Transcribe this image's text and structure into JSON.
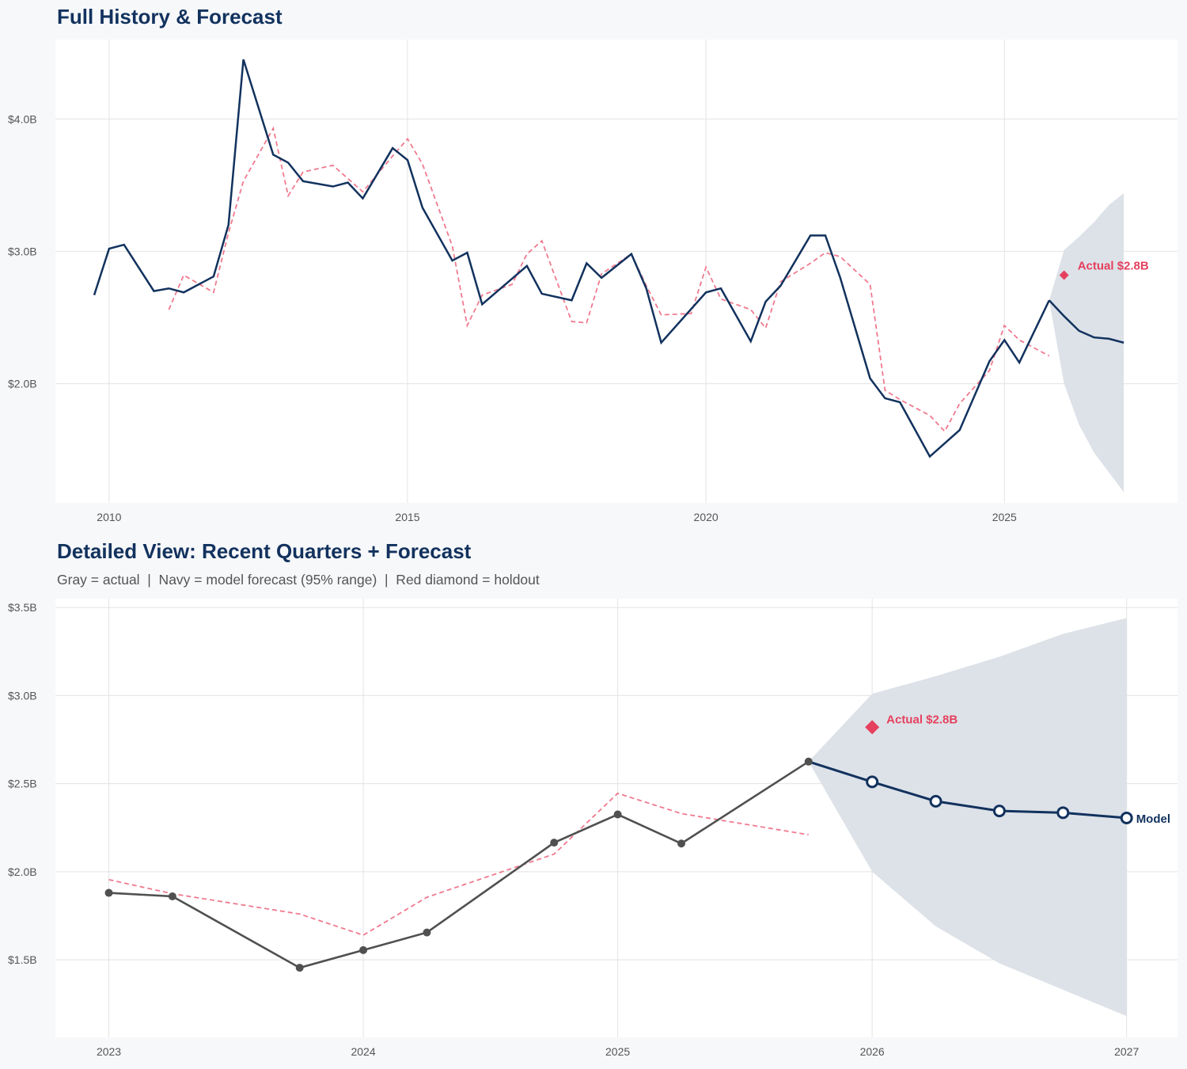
{
  "colors": {
    "navy": "#12325e",
    "gray": "#505050",
    "red_dash": "#f07a8e",
    "holdout": "#e5405e",
    "band": "#dbe0e7",
    "grid": "#e3e3e3"
  },
  "chart_data": [
    {
      "type": "line",
      "title": "Full History & Forecast",
      "xlim": [
        2009.1,
        2027.9
      ],
      "ylim": [
        1.1,
        4.6
      ],
      "x_ticks": [
        2010,
        2015,
        2020,
        2025
      ],
      "x_tick_labels": [
        "2010",
        "2015",
        "2020",
        "2025"
      ],
      "y_ticks": [
        2,
        3,
        4
      ],
      "y_tick_labels": [
        "$2.0B",
        "$3.0B",
        "$4.0B"
      ],
      "grid": true,
      "actual": {
        "x": [
          2009.75,
          2010,
          2010.25,
          2010.75,
          2011,
          2011.25,
          2011.75,
          2012,
          2012.25,
          2012.75,
          2013,
          2013.25,
          2013.75,
          2014,
          2014.25,
          2014.75,
          2015,
          2015.25,
          2015.75,
          2016,
          2016.25,
          2017,
          2017.25,
          2017.75,
          2018,
          2018.25,
          2018.75,
          2019,
          2019.25,
          2020,
          2020.25,
          2020.75,
          2021,
          2021.25,
          2021.75,
          2022,
          2022.25,
          2022.75,
          2023,
          2023.25,
          2023.75,
          2024,
          2024.25,
          2024.75,
          2025,
          2025.25,
          2025.75
        ],
        "y": [
          2.67,
          3.02,
          3.05,
          2.7,
          2.72,
          2.69,
          2.81,
          3.2,
          4.45,
          3.73,
          3.67,
          3.53,
          3.49,
          3.52,
          3.4,
          3.78,
          3.69,
          3.33,
          2.93,
          2.99,
          2.6,
          2.89,
          2.68,
          2.63,
          2.91,
          2.8,
          2.98,
          2.72,
          2.31,
          2.69,
          2.72,
          2.32,
          2.62,
          2.74,
          3.12,
          3.12,
          2.8,
          2.04,
          1.89,
          1.86,
          1.45,
          1.55,
          1.65,
          2.17,
          2.33,
          2.16,
          2.63
        ]
      },
      "fitted": {
        "x": [
          2011,
          2011.25,
          2011.75,
          2012,
          2012.25,
          2012.75,
          2013,
          2013.25,
          2013.75,
          2014.25,
          2014.75,
          2015,
          2015.25,
          2015.75,
          2016,
          2016.25,
          2016.75,
          2017,
          2017.25,
          2017.75,
          2018,
          2018.25,
          2018.75,
          2019,
          2019.25,
          2019.75,
          2020,
          2020.25,
          2020.75,
          2021,
          2021.25,
          2021.75,
          2022,
          2022.25,
          2022.75,
          2023,
          2023.25,
          2023.75,
          2024,
          2024.25,
          2024.75,
          2025,
          2025.25,
          2025.75
        ],
        "y": [
          2.56,
          2.82,
          2.69,
          3.14,
          3.53,
          3.93,
          3.42,
          3.6,
          3.65,
          3.45,
          3.72,
          3.85,
          3.66,
          3.04,
          2.44,
          2.67,
          2.75,
          2.98,
          3.08,
          2.47,
          2.46,
          2.83,
          2.98,
          2.74,
          2.52,
          2.53,
          2.88,
          2.64,
          2.56,
          2.42,
          2.77,
          2.91,
          2.99,
          2.96,
          2.75,
          1.95,
          1.88,
          1.76,
          1.64,
          1.85,
          2.1,
          2.44,
          2.33,
          2.21
        ]
      },
      "forecast": {
        "x": [
          2025.75,
          2026,
          2026.25,
          2026.5,
          2026.75,
          2027
        ],
        "y": [
          2.63,
          2.51,
          2.4,
          2.35,
          2.34,
          2.31
        ]
      },
      "band": {
        "x": [
          2025.75,
          2026,
          2026.25,
          2026.5,
          2026.75,
          2027
        ],
        "upper": [
          2.63,
          3.01,
          3.11,
          3.22,
          3.35,
          3.44
        ],
        "lower": [
          2.63,
          2.0,
          1.69,
          1.48,
          1.33,
          1.18
        ]
      },
      "holdout": {
        "x": 2026,
        "y": 2.82,
        "label": "Actual $2.8B"
      }
    },
    {
      "type": "line",
      "title": "Detailed View: Recent Quarters + Forecast",
      "subtitle": "Gray = actual  |  Navy = model forecast (95% range)  |  Red diamond = holdout",
      "xlim": [
        2022.79,
        2027.2
      ],
      "ylim": [
        1.06,
        3.55
      ],
      "x_ticks": [
        2023,
        2024,
        2025,
        2026,
        2027
      ],
      "x_tick_labels": [
        "2023",
        "2024",
        "2025",
        "2026",
        "2027"
      ],
      "y_ticks": [
        1.5,
        2,
        2.5,
        3,
        3.5
      ],
      "y_tick_labels": [
        "$1.5B",
        "$2.0B",
        "$2.5B",
        "$3.0B",
        "$3.5B"
      ],
      "grid": true,
      "actual": {
        "x": [
          2023,
          2023.25,
          2023.75,
          2024,
          2024.25,
          2024.75,
          2025,
          2025.25,
          2025.75
        ],
        "y": [
          1.88,
          1.86,
          1.455,
          1.555,
          1.655,
          2.165,
          2.325,
          2.16,
          2.625
        ]
      },
      "fitted": {
        "x": [
          2023,
          2023.25,
          2023.75,
          2024,
          2024.25,
          2024.75,
          2025,
          2025.25,
          2025.75
        ],
        "y": [
          1.955,
          1.875,
          1.76,
          1.64,
          1.855,
          2.1,
          2.445,
          2.33,
          2.21
        ]
      },
      "forecast": {
        "x": [
          2025.75,
          2026,
          2026.25,
          2026.5,
          2026.75,
          2027
        ],
        "y": [
          2.625,
          2.51,
          2.4,
          2.345,
          2.335,
          2.305
        ],
        "label": "Model"
      },
      "band": {
        "x": [
          2025.75,
          2026,
          2026.25,
          2026.5,
          2026.75,
          2027
        ],
        "upper": [
          2.625,
          3.01,
          3.11,
          3.22,
          3.35,
          3.44
        ],
        "lower": [
          2.625,
          2.0,
          1.69,
          1.48,
          1.33,
          1.18
        ]
      },
      "holdout": {
        "x": 2026,
        "y": 2.82,
        "label": "Actual $2.8B"
      }
    }
  ]
}
